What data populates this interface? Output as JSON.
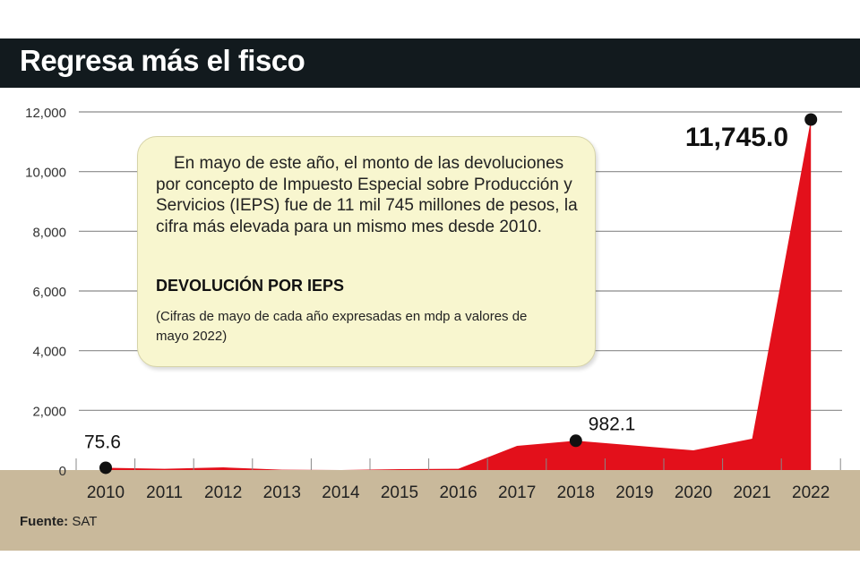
{
  "chart_data": {
    "type": "area",
    "title": "Regresa más el fisco",
    "subtitle": "DEVOLUCIÓN POR IEPS",
    "note": "(Cifras de mayo de cada año expresadas en mdp a valores de mayo 2022)",
    "description": "En mayo de este año, el monto de las devoluciones por concepto de Impuesto Especial sobre Producción y Servicios (IEPS) fue de 11 mil 745 millones de pesos, la cifra más elevada para un mismo mes desde 2010.",
    "categories": [
      "2010",
      "2011",
      "2012",
      "2013",
      "2014",
      "2015",
      "2016",
      "2017",
      "2018",
      "2019",
      "2020",
      "2021",
      "2022"
    ],
    "values": [
      75.6,
      40,
      90,
      10,
      0,
      30,
      40,
      810,
      982.1,
      820,
      660,
      1050,
      11745.0
    ],
    "data_labels": [
      {
        "index": 0,
        "text": "75.6"
      },
      {
        "index": 8,
        "text": "982.1"
      },
      {
        "index": 12,
        "text": "11,745.0"
      }
    ],
    "yticks": [
      0,
      2000,
      4000,
      6000,
      8000,
      10000,
      12000
    ],
    "ytick_labels": [
      "0",
      "2,000",
      "4,000",
      "6,000",
      "8,000",
      "10,000",
      "12,000"
    ],
    "ylim": [
      0,
      12000
    ],
    "xlabel": "",
    "ylabel": "",
    "color": "#e3101b"
  },
  "source": {
    "label": "Fuente:",
    "value": "SAT"
  }
}
